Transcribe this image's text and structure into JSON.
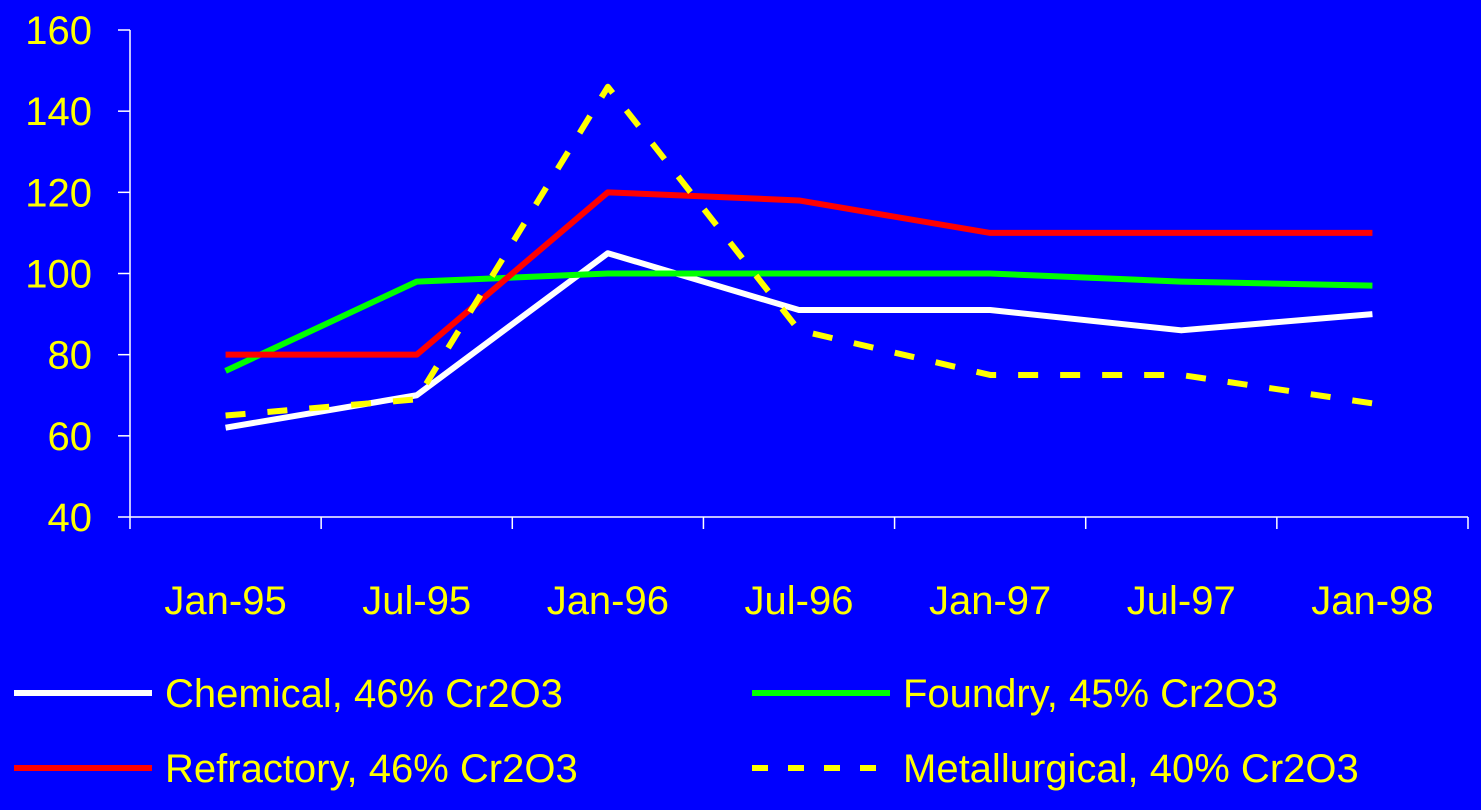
{
  "colors": {
    "background": "#0000FF",
    "text": "#FFFF00",
    "axis": "#FFFFFF"
  },
  "chart_data": {
    "type": "line",
    "title": "",
    "xlabel": "",
    "ylabel": "",
    "ylim": [
      40,
      160
    ],
    "yticks": [
      "40",
      "60",
      "80",
      "100",
      "120",
      "140",
      "160"
    ],
    "grid": false,
    "legend_position": "bottom",
    "categories": [
      "Jan-95",
      "Jul-95",
      "Jan-96",
      "Jul-96",
      "Jan-97",
      "Jul-97",
      "Jan-98"
    ],
    "series": [
      {
        "name": "Chemical, 46% Cr2O3",
        "color": "#FFFFFF",
        "dash": "solid",
        "values": [
          62,
          70,
          105,
          91,
          91,
          86,
          90
        ]
      },
      {
        "name": "Foundry, 45% Cr2O3",
        "color": "#00FF00",
        "dash": "solid",
        "values": [
          76,
          98,
          100,
          100,
          100,
          98,
          97
        ]
      },
      {
        "name": "Refractory, 46% Cr2O3",
        "color": "#FF0000",
        "dash": "solid",
        "values": [
          80,
          80,
          120,
          118,
          110,
          110,
          110
        ]
      },
      {
        "name": "Metallurgical, 40% Cr2O3",
        "color": "#FFFF00",
        "dash": "dashed",
        "values": [
          65,
          69,
          146,
          86,
          75,
          75,
          68
        ]
      }
    ]
  }
}
